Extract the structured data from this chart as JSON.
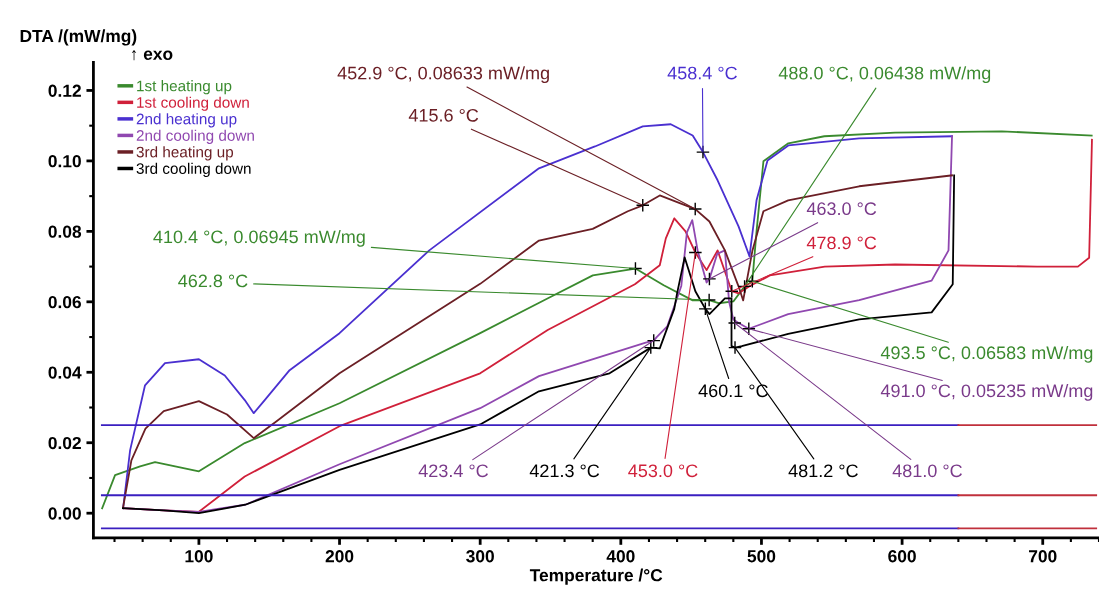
{
  "chart_data": {
    "type": "line",
    "xlabel": "Temperature /°C",
    "ylabel": "DTA /(mW/mg)",
    "xlim": [
      25,
      740
    ],
    "ylim": [
      -0.007,
      0.128
    ],
    "xticks": [
      100,
      200,
      300,
      400,
      500,
      600,
      700
    ],
    "yticks": [
      {
        "value": 0,
        "label": "0.00"
      },
      {
        "value": 0.02,
        "label": "0.02"
      },
      {
        "value": 0.04,
        "label": "0.04"
      },
      {
        "value": 0.06,
        "label": "0.06"
      },
      {
        "value": 0.08,
        "label": "0.08"
      },
      {
        "value": 0.1,
        "label": "0.10"
      },
      {
        "value": 0.12,
        "label": "0.12"
      }
    ],
    "grid": false,
    "legend": "top left",
    "marker": "none",
    "line_style": "solid",
    "series": [
      {
        "name": "1st heating up",
        "color": "#3a8a2e",
        "x": [
          31.2,
          40.4,
          58.2,
          68.8,
          100,
          132.6,
          200,
          300,
          348.2,
          380.1,
          410.4,
          430.5,
          451.1,
          462.8,
          469.5,
          480,
          488.0,
          493.5,
          496.5,
          501.4,
          519.1,
          544.7,
          595,
          670.9,
          734.8
        ],
        "values": [
          0.0014,
          0.0108,
          0.0133,
          0.0145,
          0.0119,
          0.0199,
          0.0312,
          0.0511,
          0.061,
          0.0675,
          0.06945,
          0.0647,
          0.0604,
          0.0605,
          0.0596,
          0.0601,
          0.06438,
          0.06583,
          0.08,
          0.0999,
          0.105,
          0.107,
          0.108,
          0.1084,
          0.1072
        ]
      },
      {
        "name": "1st cooling down",
        "color": "#d0203a",
        "x": [
          735,
          733,
          725,
          696,
          595,
          545,
          506,
          491.5,
          483.7,
          478.9,
          468.8,
          461,
          453.0,
          446,
          438,
          432,
          427.7,
          410,
          348,
          300,
          200,
          132.6,
          100,
          75,
          46
        ],
        "values": [
          0.106,
          0.0725,
          0.07,
          0.07,
          0.0706,
          0.07,
          0.0675,
          0.0644,
          0.0624,
          0.063,
          0.0746,
          0.069,
          0.074,
          0.08,
          0.0837,
          0.078,
          0.0704,
          0.065,
          0.052,
          0.0397,
          0.0247,
          0.0104,
          0.0004,
          0.0008,
          0.0014
        ]
      },
      {
        "name": "2nd heating up",
        "color": "#4a30d0",
        "x": [
          46.1,
          51.1,
          61.7,
          75.9,
          100,
          118.4,
          132.6,
          139,
          146.8,
          164.5,
          200,
          263.8,
          341.8,
          381.6,
          415.6,
          435.5,
          451.1,
          458.4,
          468.8,
          483.7,
          491.5,
          496.5,
          504.3,
          519.1,
          569.5,
          635.5
        ],
        "values": [
          0.0014,
          0.0179,
          0.0363,
          0.0426,
          0.0437,
          0.0391,
          0.0321,
          0.0284,
          0.0321,
          0.0406,
          0.0511,
          0.0746,
          0.0979,
          0.1041,
          0.1098,
          0.1104,
          0.1072,
          0.1025,
          0.0945,
          0.0814,
          0.0729,
          0.0888,
          0.1001,
          0.1044,
          0.1064,
          0.107
        ]
      },
      {
        "name": "2nd cooling down",
        "color": "#9048b0",
        "x": [
          635.5,
          633,
          621,
          569.5,
          519,
          491.0,
          483.7,
          480,
          477,
          474,
          468.5,
          463.0,
          461,
          454.6,
          450.8,
          447,
          443,
          433,
          425.5,
          423.4,
          417.7,
          341.8,
          300,
          200,
          133,
          100,
          75,
          46
        ],
        "values": [
          0.107,
          0.0746,
          0.066,
          0.0605,
          0.0565,
          0.05235,
          0.054,
          0.055,
          0.06,
          0.0746,
          0.0736,
          0.0665,
          0.0655,
          0.0746,
          0.0832,
          0.0797,
          0.0645,
          0.053,
          0.05,
          0.049,
          0.0484,
          0.0389,
          0.0298,
          0.0139,
          0.0024,
          0.0004,
          0.0008,
          0.0014
        ]
      },
      {
        "name": "3rd heating up",
        "color": "#6b1f25",
        "x": [
          46,
          52,
          62,
          75,
          100,
          120,
          139,
          155,
          200,
          300,
          341.8,
          380,
          405,
          415.6,
          427.7,
          452.9,
          463,
          474,
          483.7,
          487,
          493.6,
          501.4,
          519,
          569.5,
          635.5
        ],
        "values": [
          0.0014,
          0.015,
          0.024,
          0.029,
          0.0318,
          0.028,
          0.0213,
          0.026,
          0.0397,
          0.0651,
          0.0774,
          0.0807,
          0.0857,
          0.0874,
          0.0902,
          0.08633,
          0.0828,
          0.0746,
          0.0644,
          0.0604,
          0.0746,
          0.0857,
          0.0888,
          0.0928,
          0.0959
        ]
      },
      {
        "name": "3rd cooling down",
        "color": "#000000",
        "x": [
          637,
          636,
          621,
          569.5,
          519,
          486,
          481.2,
          478.7,
          478.7,
          474,
          463,
          460.1,
          453,
          445.4,
          440,
          438,
          427.7,
          421.3,
          392,
          341.8,
          300,
          200,
          133,
          100,
          75,
          46
        ],
        "values": [
          0.0959,
          0.065,
          0.057,
          0.055,
          0.0509,
          0.0474,
          0.047,
          0.0474,
          0.061,
          0.061,
          0.0565,
          0.058,
          0.063,
          0.0726,
          0.0624,
          0.058,
          0.0468,
          0.047,
          0.0397,
          0.0346,
          0.0252,
          0.0123,
          0.0024,
          0.0,
          0.0008,
          0.0014
        ]
      },
      {
        "color": "#3a1fc0",
        "x": [
          31,
          640
        ],
        "values": [
          0.025,
          0.025
        ]
      },
      {
        "color": "#3a1fc0",
        "x": [
          31,
          640
        ],
        "values": [
          0.0051,
          0.0051
        ]
      },
      {
        "color": "#3a1fc0",
        "x": [
          31,
          640
        ],
        "values": [
          -0.0043,
          -0.0043
        ]
      },
      {
        "color": "#c0303c",
        "x": [
          640,
          738
        ],
        "values": [
          0.025,
          0.025
        ]
      },
      {
        "color": "#c0303c",
        "x": [
          640,
          738
        ],
        "values": [
          0.0051,
          0.0051
        ]
      },
      {
        "color": "#c0303c",
        "x": [
          640,
          738
        ],
        "values": [
          -0.0043,
          -0.0043
        ]
      }
    ],
    "annotations": [
      "↑ exo",
      {
        "text": "452.9 °C, 0.08633 mW/mg",
        "x": 452.9,
        "y": 0.08633
      },
      {
        "text": "458.4 °C",
        "x": 458.4,
        "y": 0.1025
      },
      {
        "text": "488.0 °C, 0.06438 mW/mg",
        "x": 488.0,
        "y": 0.06438
      },
      {
        "text": "415.6 °C",
        "x": 415.6,
        "y": 0.0874
      },
      {
        "text": "410.4 °C, 0.06945 mW/mg",
        "x": 410.4,
        "y": 0.06945
      },
      {
        "text": "462.8 °C",
        "x": 462.8,
        "y": 0.0605
      },
      {
        "text": "463.0 °C",
        "x": 463.0,
        "y": 0.0665
      },
      {
        "text": "478.9 °C",
        "x": 478.9,
        "y": 0.063
      },
      {
        "text": "493.5 °C, 0.06583 mW/mg",
        "x": 493.5,
        "y": 0.06583
      },
      {
        "text": "491.0 °C, 0.05235 mW/mg",
        "x": 491.0,
        "y": 0.05235
      },
      {
        "text": "460.1 °C",
        "x": 460.1,
        "y": 0.058
      },
      {
        "text": "423.4 °C",
        "x": 423.4,
        "y": 0.049
      },
      {
        "text": "421.3 °C",
        "x": 421.3,
        "y": 0.047
      },
      {
        "text": "453.0 °C",
        "x": 453.0,
        "y": 0.074
      },
      {
        "text": "481.2 °C",
        "x": 481.2,
        "y": 0.047
      },
      {
        "text": "481.0 °C",
        "x": 481.0,
        "y": 0.054
      }
    ]
  }
}
